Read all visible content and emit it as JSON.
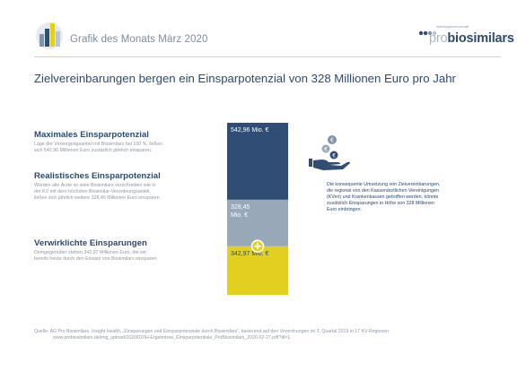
{
  "header": {
    "title": "Grafik des Monats März 2020",
    "brand_tagline": "Arbeitsgemeinschaft",
    "brand_pro": "pro",
    "brand_name": "biosimilars"
  },
  "main_title": "Zielvereinbarungen bergen ein Einsparpotenzial von 328 Millionen Euro pro Jahr",
  "blocks": [
    {
      "title": "Maximales Einsparpotenzial",
      "lines": [
        "Läge der Versorgungsanteil mit Biosimilars bei 100 %, ließen",
        "sich 542,96 Millionen Euro zusätzlich jährlich einsparen."
      ]
    },
    {
      "title": "Realistisches Einsparpotenzial",
      "lines": [
        "Würden alle Ärzte so viele Biosimilars verschreiben wie in",
        "der KV mit dem höchsten Biosimilar-Verordnungsanteil,",
        "ließen sich jährlich weitere 328,45 Millionen Euro einsparen."
      ]
    },
    {
      "title": "Verwirklichte Einsparungen",
      "lines": [
        "Demgegenüber stehen 342,97 Millionen Euro, die wir",
        "bereits heute durch den Einsatz von Biosimilars einsparen."
      ]
    }
  ],
  "chart_data": {
    "type": "bar",
    "stacked": true,
    "categories": [
      ""
    ],
    "series": [
      {
        "name": "Verwirklichte Einsparungen",
        "values": [
          342.97
        ],
        "label": "342,97 Mio. €",
        "color": "#e2cf1f"
      },
      {
        "name": "Realistisches Einsparpotenzial",
        "values": [
          328.45
        ],
        "label": "328,45 Mio. €",
        "label_lines": [
          "328,45",
          "Mio. €"
        ],
        "color": "#98a8b9"
      },
      {
        "name": "Maximales Einsparpotenzial",
        "values": [
          542.96
        ],
        "label": "542,96 Mio. €",
        "color": "#2f4d75"
      }
    ],
    "title": "",
    "xlabel": "",
    "ylabel": "",
    "grid": false
  },
  "right_text": [
    "Die konsequente Umsetzung von Zielvereinbarungen,",
    "die regional von den Kassenärztlichen Vereinigungen",
    "(KVen) und Krankenkassen getroffen werden, könnte",
    "zusätzlich Einsparungen in Höhe von 328 Millionen",
    "Euro einbringen."
  ],
  "icons": {
    "logo": "chart-logo-icon",
    "money": "money-hand-icon",
    "plus": "plus-icon"
  },
  "source": [
    "Quelle:   AG Pro Biosimilars, Insight Health, „Einsparungen und Einsparpotenziale durch Biosimilars“, basierend auf den Verordnungen im 3. Quartal 2019 in 17 KV-Regionen.",
    "www.probiosimilars.de/img_upload/2020/02/IH-Ergebnisse_Einsparpotentiale_ProBiosimilars_2020-02-27.pdf?dl=1"
  ]
}
